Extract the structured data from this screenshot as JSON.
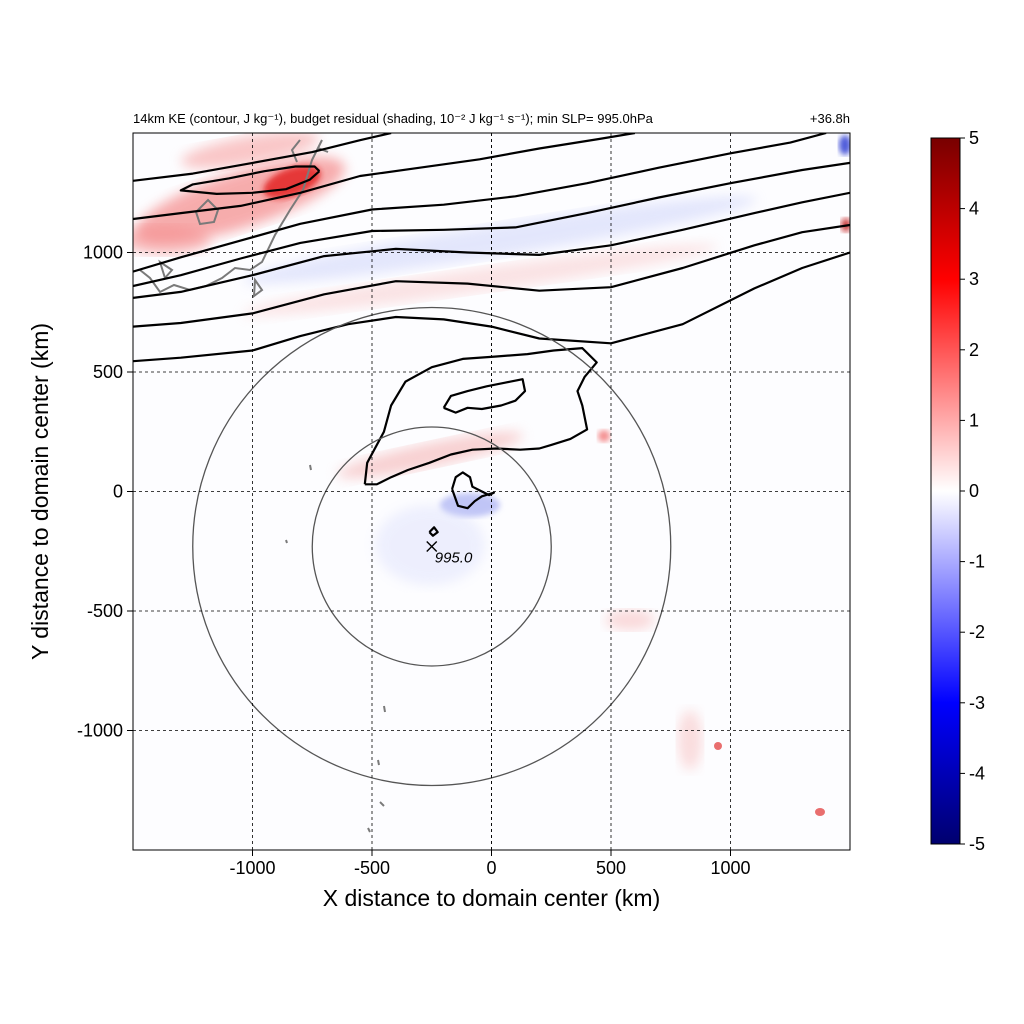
{
  "chart_data": {
    "type": "heatmap",
    "title_left": "14km KE (contour, J kg⁻¹), budget residual (shading, 10⁻² J kg⁻¹ s⁻¹); min SLP= 995.0hPa",
    "title_right": "+36.8h",
    "xlabel": "X distance to domain center (km)",
    "ylabel": "Y distance to domain center (km)",
    "xlim": [
      -1500,
      1500
    ],
    "ylim": [
      -1500,
      1500
    ],
    "xticks": [
      -1000,
      -500,
      0,
      500,
      1000
    ],
    "yticks": [
      -1000,
      -500,
      0,
      500,
      1000
    ],
    "grid": true,
    "colorbar": {
      "min": -5,
      "max": 5,
      "ticks": [
        5,
        4,
        3,
        2,
        1,
        0,
        -1,
        -2,
        -3,
        -4,
        -5
      ],
      "colors": [
        "#00006e",
        "#0000ff",
        "#ffffff",
        "#ff0000",
        "#780000"
      ]
    },
    "storm_center": {
      "x": -250,
      "y": -230,
      "label": "995.0"
    },
    "range_circles_km": [
      500,
      1000
    ],
    "ke_contours": [
      {
        "points": [
          [
            -1500,
            545
          ],
          [
            -1300,
            560
          ],
          [
            -1000,
            590
          ],
          [
            -800,
            650
          ],
          [
            -600,
            700
          ],
          [
            -400,
            730
          ],
          [
            -200,
            720
          ],
          [
            0,
            690
          ],
          [
            200,
            640
          ],
          [
            500,
            620
          ],
          [
            800,
            700
          ],
          [
            1100,
            850
          ],
          [
            1300,
            935
          ],
          [
            1500,
            1000
          ]
        ]
      },
      {
        "points": [
          [
            -1500,
            690
          ],
          [
            -1300,
            705
          ],
          [
            -1000,
            745
          ],
          [
            -700,
            825
          ],
          [
            -400,
            880
          ],
          [
            -100,
            870
          ],
          [
            200,
            840
          ],
          [
            500,
            855
          ],
          [
            800,
            935
          ],
          [
            1100,
            1030
          ],
          [
            1300,
            1085
          ],
          [
            1500,
            1115
          ]
        ]
      },
      {
        "points": [
          [
            -1500,
            810
          ],
          [
            -1300,
            835
          ],
          [
            -1000,
            905
          ],
          [
            -700,
            985
          ],
          [
            -400,
            1015
          ],
          [
            -100,
            1000
          ],
          [
            200,
            990
          ],
          [
            500,
            1030
          ],
          [
            800,
            1095
          ],
          [
            1100,
            1165
          ],
          [
            1300,
            1210
          ],
          [
            1500,
            1250
          ]
        ]
      },
      {
        "points": [
          [
            -1500,
            860
          ],
          [
            -1300,
            905
          ],
          [
            -1050,
            975
          ],
          [
            -800,
            1040
          ],
          [
            -500,
            1090
          ],
          [
            -200,
            1095
          ],
          [
            100,
            1105
          ],
          [
            400,
            1165
          ],
          [
            700,
            1230
          ],
          [
            1000,
            1290
          ],
          [
            1300,
            1345
          ],
          [
            1500,
            1375
          ]
        ]
      },
      {
        "points": [
          [
            -1500,
            920
          ],
          [
            -1300,
            980
          ],
          [
            -1050,
            1050
          ],
          [
            -800,
            1120
          ],
          [
            -500,
            1180
          ],
          [
            -200,
            1200
          ],
          [
            100,
            1235
          ],
          [
            400,
            1290
          ],
          [
            700,
            1355
          ],
          [
            1000,
            1415
          ],
          [
            1250,
            1460
          ],
          [
            1400,
            1500
          ]
        ]
      },
      {
        "points": [
          [
            -1500,
            1140
          ],
          [
            -1300,
            1165
          ],
          [
            -1050,
            1195
          ],
          [
            -800,
            1250
          ],
          [
            -550,
            1320
          ],
          [
            -300,
            1355
          ],
          [
            -50,
            1390
          ],
          [
            200,
            1435
          ],
          [
            450,
            1475
          ],
          [
            600,
            1500
          ]
        ]
      },
      {
        "points": [
          [
            -1500,
            1300
          ],
          [
            -1250,
            1330
          ],
          [
            -1000,
            1375
          ],
          [
            -750,
            1420
          ],
          [
            -550,
            1470
          ],
          [
            -420,
            1500
          ]
        ]
      },
      {
        "points": [
          [
            -720,
            1340
          ],
          [
            -760,
            1305
          ],
          [
            -860,
            1265
          ],
          [
            -1000,
            1250
          ],
          [
            -1150,
            1245
          ],
          [
            -1300,
            1260
          ],
          [
            -1250,
            1285
          ],
          [
            -1100,
            1310
          ],
          [
            -950,
            1340
          ],
          [
            -820,
            1360
          ],
          [
            -740,
            1360
          ],
          [
            -720,
            1340
          ]
        ]
      },
      {
        "points": [
          [
            -530,
            30
          ],
          [
            -520,
            120
          ],
          [
            -450,
            250
          ],
          [
            -420,
            360
          ],
          [
            -360,
            460
          ],
          [
            -250,
            520
          ],
          [
            -120,
            555
          ],
          [
            20,
            565
          ],
          [
            150,
            575
          ],
          [
            260,
            590
          ],
          [
            380,
            600
          ],
          [
            440,
            540
          ],
          [
            390,
            480
          ],
          [
            360,
            420
          ],
          [
            380,
            360
          ],
          [
            400,
            260
          ],
          [
            330,
            220
          ],
          [
            250,
            195
          ],
          [
            200,
            180
          ],
          [
            120,
            175
          ],
          [
            20,
            180
          ],
          [
            -80,
            175
          ],
          [
            -170,
            155
          ],
          [
            -260,
            120
          ],
          [
            -350,
            90
          ],
          [
            -420,
            60
          ],
          [
            -480,
            30
          ],
          [
            -530,
            30
          ]
        ]
      },
      {
        "points": [
          [
            -200,
            350
          ],
          [
            -170,
            400
          ],
          [
            -100,
            420
          ],
          [
            -20,
            440
          ],
          [
            80,
            460
          ],
          [
            130,
            470
          ],
          [
            140,
            420
          ],
          [
            100,
            380
          ],
          [
            40,
            360
          ],
          [
            -40,
            345
          ],
          [
            -100,
            350
          ],
          [
            -150,
            330
          ],
          [
            -200,
            350
          ]
        ]
      },
      {
        "points": [
          [
            -165,
            10
          ],
          [
            -150,
            60
          ],
          [
            -120,
            80
          ],
          [
            -90,
            60
          ],
          [
            -80,
            20
          ],
          [
            -40,
            0
          ],
          [
            -10,
            -15
          ],
          [
            10,
            -5
          ],
          [
            -40,
            -20
          ],
          [
            -70,
            -40
          ],
          [
            -100,
            -70
          ],
          [
            -140,
            -60
          ],
          [
            -165,
            10
          ]
        ]
      },
      {
        "points": [
          [
            -260,
            -170
          ],
          [
            -240,
            -150
          ],
          [
            -225,
            -170
          ],
          [
            -245,
            -185
          ],
          [
            -260,
            -170
          ]
        ]
      }
    ]
  }
}
